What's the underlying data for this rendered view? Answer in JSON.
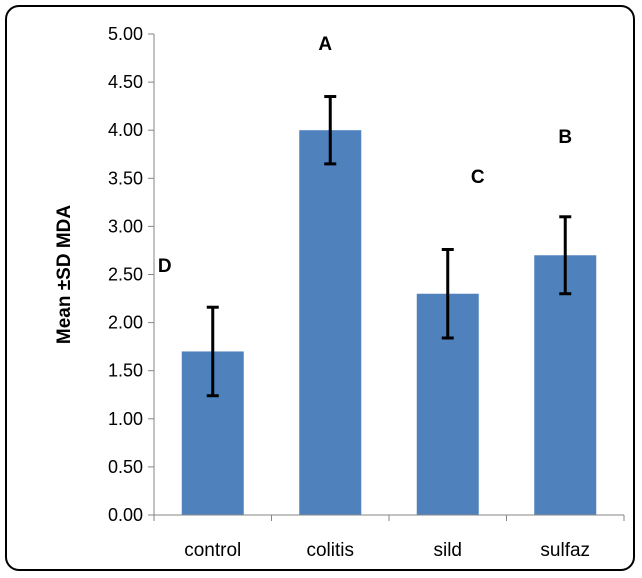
{
  "chart_data": {
    "type": "bar",
    "categories": [
      "control",
      "colitis",
      "sild",
      "sulfaz"
    ],
    "values": [
      1.7,
      4.0,
      2.3,
      2.7
    ],
    "errors": [
      0.46,
      0.35,
      0.46,
      0.4
    ],
    "annotations": [
      "D",
      "A",
      "C",
      "B"
    ],
    "ylabel": "Mean ±SD MDA",
    "ylim": [
      0,
      5
    ],
    "yticks": [
      "0.00",
      "0.50",
      "1.00",
      "1.50",
      "2.00",
      "2.50",
      "3.00",
      "3.50",
      "4.00",
      "4.50",
      "5.00"
    ],
    "bar_color": "#4f81bd",
    "error_color": "#000000",
    "grid": false,
    "legend": "none"
  }
}
